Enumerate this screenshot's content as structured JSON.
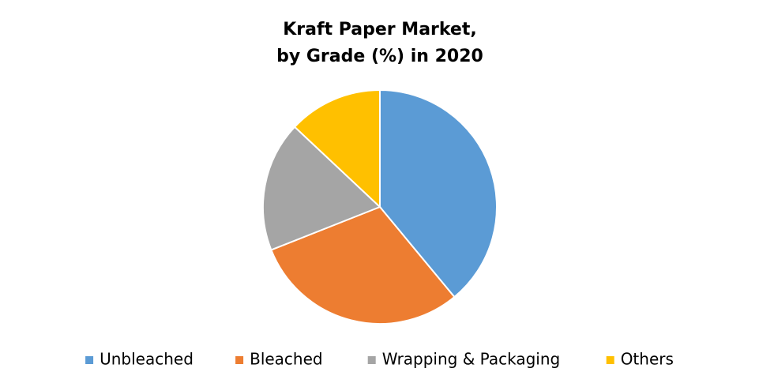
{
  "chart_data": {
    "type": "pie",
    "title": [
      "Kraft Paper Market,",
      "by Grade (%) in 2020"
    ],
    "categories": [
      "Unbleached",
      "Bleached",
      "Wrapping & Packaging",
      "Others"
    ],
    "values": [
      39,
      30,
      18,
      13
    ],
    "colors": [
      "#5b9bd5",
      "#ed7d31",
      "#a5a5a5",
      "#ffc000"
    ],
    "legend": "bottom"
  }
}
